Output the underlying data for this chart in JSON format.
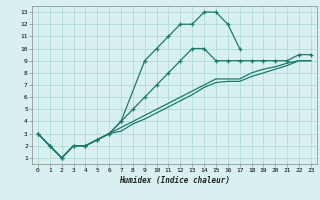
{
  "title": "",
  "xlabel": "Humidex (Indice chaleur)",
  "bg_color": "#d8f0f0",
  "grid_color": "#a8d8d0",
  "line_color": "#1a7a6e",
  "xlim": [
    -0.5,
    23.5
  ],
  "ylim": [
    0.5,
    13.5
  ],
  "xticks": [
    0,
    1,
    2,
    3,
    4,
    5,
    6,
    7,
    8,
    9,
    10,
    11,
    12,
    13,
    14,
    15,
    16,
    17,
    18,
    19,
    20,
    21,
    22,
    23
  ],
  "yticks": [
    1,
    2,
    3,
    4,
    5,
    6,
    7,
    8,
    9,
    10,
    11,
    12,
    13
  ],
  "line1_x": [
    0,
    1,
    2,
    3,
    4,
    5,
    6,
    7,
    9,
    10,
    11,
    12,
    13,
    14,
    15,
    16,
    17
  ],
  "line1_y": [
    3,
    2,
    1,
    2,
    2,
    2.5,
    3,
    4,
    9,
    10,
    11,
    12,
    12,
    13,
    13,
    12,
    10
  ],
  "line2_x": [
    0,
    1,
    2,
    3,
    4,
    5,
    6,
    7,
    8,
    9,
    10,
    11,
    12,
    13,
    14,
    15,
    16,
    17,
    18,
    19,
    20,
    21,
    22,
    23
  ],
  "line2_y": [
    3,
    2,
    1,
    2,
    2,
    2.5,
    3,
    4,
    5,
    6,
    7,
    8,
    9,
    10,
    10,
    9,
    9,
    9,
    9,
    9,
    9,
    9,
    9.5,
    9.5
  ],
  "line3_x": [
    0,
    1,
    2,
    3,
    4,
    5,
    6,
    7,
    8,
    9,
    10,
    11,
    12,
    13,
    14,
    15,
    16,
    17,
    18,
    19,
    20,
    21,
    22,
    23
  ],
  "line3_y": [
    3,
    2,
    1,
    2,
    2,
    2.5,
    3,
    3.5,
    4,
    4.5,
    5,
    5.5,
    6,
    6.5,
    7,
    7.5,
    7.5,
    7.5,
    8,
    8.3,
    8.5,
    8.8,
    9,
    9
  ],
  "line4_x": [
    0,
    1,
    2,
    3,
    4,
    5,
    6,
    7,
    8,
    9,
    10,
    11,
    12,
    13,
    14,
    15,
    16,
    17,
    18,
    19,
    20,
    21,
    22,
    23
  ],
  "line4_y": [
    3,
    2,
    1,
    2,
    2,
    2.5,
    3,
    3.2,
    3.8,
    4.2,
    4.7,
    5.2,
    5.7,
    6.2,
    6.8,
    7.2,
    7.3,
    7.3,
    7.7,
    8,
    8.3,
    8.6,
    9,
    9
  ]
}
